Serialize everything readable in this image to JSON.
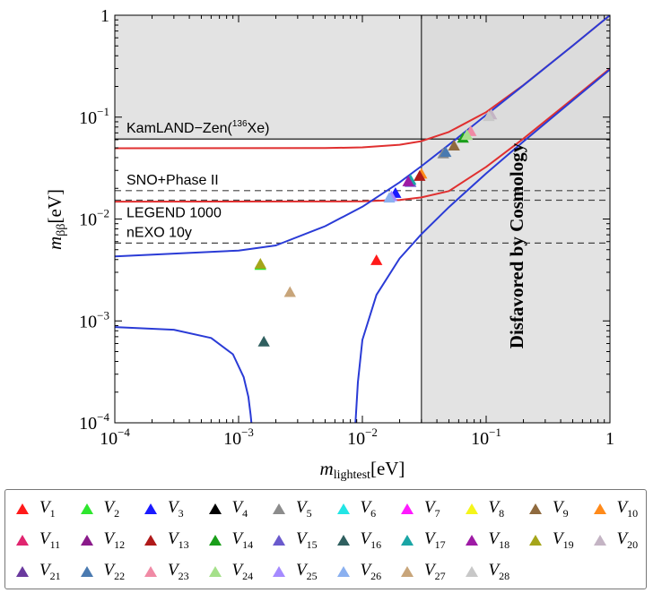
{
  "chart_data": {
    "type": "scatter",
    "xlabel": "m_lightest[eV]",
    "ylabel": "m_ββ[eV]",
    "xlabel_main": "m",
    "xlabel_sub": "lightest",
    "xlabel_unit": "[eV]",
    "ylabel_main": "m",
    "ylabel_sub": "ββ",
    "ylabel_unit": "[eV]",
    "x_scale": "log",
    "y_scale": "log",
    "xlim": [
      0.0001,
      1
    ],
    "ylim": [
      0.0001,
      1
    ],
    "x_ticks": [
      {
        "value": 0.0001,
        "base": "10",
        "exp": "−4"
      },
      {
        "value": 0.001,
        "base": "10",
        "exp": "−3"
      },
      {
        "value": 0.01,
        "base": "10",
        "exp": "−2"
      },
      {
        "value": 0.1,
        "base": "10",
        "exp": "−1"
      },
      {
        "value": 1,
        "base": "1",
        "exp": ""
      }
    ],
    "y_ticks": [
      {
        "value": 0.0001,
        "base": "10",
        "exp": "−4"
      },
      {
        "value": 0.001,
        "base": "10",
        "exp": "−3"
      },
      {
        "value": 0.01,
        "base": "10",
        "exp": "−2"
      },
      {
        "value": 0.1,
        "base": "10",
        "exp": "−1"
      },
      {
        "value": 1,
        "base": "1",
        "exp": ""
      }
    ],
    "excluded_regions": [
      {
        "name": "KamLAND-Zen excluded",
        "y_min": 0.061,
        "color": "#d9d9d9"
      },
      {
        "name": "Cosmology disfavored",
        "x_min": 0.03,
        "color": "#d9d9d9"
      }
    ],
    "limits": [
      {
        "label": "KamLAND−Zen(",
        "sup": "136",
        "label_tail": "Xe)",
        "y": 0.061,
        "style": "solid"
      },
      {
        "label": "SNO+Phase II",
        "y": 0.019,
        "style": "dashed"
      },
      {
        "label": "LEGEND 1000",
        "y": 0.0153,
        "style": "dashed"
      },
      {
        "label": "nEXO 10y",
        "y": 0.0058,
        "style": "dashed"
      }
    ],
    "cosmology_x": 0.03,
    "cosmology_label": "Disfavored by Cosmology",
    "bands": [
      {
        "name": "IO upper",
        "color": "#e03030",
        "points": [
          [
            0.0001,
            0.0495
          ],
          [
            0.005,
            0.0497
          ],
          [
            0.01,
            0.0505
          ],
          [
            0.02,
            0.0536
          ],
          [
            0.03,
            0.0581
          ],
          [
            0.05,
            0.0716
          ],
          [
            0.1,
            0.1118
          ],
          [
            0.2,
            0.206
          ],
          [
            0.5,
            0.502
          ],
          [
            1,
            1.0
          ]
        ]
      },
      {
        "name": "IO lower",
        "color": "#e03030",
        "points": [
          [
            0.0001,
            0.0148
          ],
          [
            0.01,
            0.0149
          ],
          [
            0.02,
            0.0154
          ],
          [
            0.03,
            0.0163
          ],
          [
            0.05,
            0.0188
          ],
          [
            0.1,
            0.0325
          ],
          [
            0.2,
            0.0614
          ],
          [
            0.5,
            0.151
          ],
          [
            1,
            0.3
          ]
        ]
      },
      {
        "name": "NO upper",
        "color": "#2a3bd6",
        "points": [
          [
            0.0001,
            0.0043
          ],
          [
            0.001,
            0.0049
          ],
          [
            0.002,
            0.0055
          ],
          [
            0.005,
            0.0085
          ],
          [
            0.01,
            0.0132
          ],
          [
            0.02,
            0.0229
          ],
          [
            0.03,
            0.033
          ],
          [
            0.05,
            0.0535
          ],
          [
            0.1,
            0.1048
          ],
          [
            0.2,
            0.205
          ],
          [
            0.5,
            0.502
          ],
          [
            1,
            1.0
          ]
        ]
      },
      {
        "name": "NO lower",
        "color": "#2a3bd6",
        "points": [
          [
            0.0001,
            0.00087
          ],
          [
            0.0003,
            0.00082
          ],
          [
            0.0006,
            0.00068
          ],
          [
            0.0009,
            0.00047
          ],
          [
            0.0011,
            0.00028
          ],
          [
            0.0012,
            0.00018
          ],
          [
            0.00125,
            0.00012
          ],
          [
            0.00127,
            0.0001
          ]
        ]
      },
      {
        "name": "NO lower right",
        "color": "#2a3bd6",
        "points": [
          [
            0.0088,
            0.0001
          ],
          [
            0.0092,
            0.00025
          ],
          [
            0.01,
            0.00065
          ],
          [
            0.013,
            0.0018
          ],
          [
            0.02,
            0.0041
          ],
          [
            0.03,
            0.0071
          ],
          [
            0.05,
            0.0131
          ],
          [
            0.1,
            0.028
          ],
          [
            0.2,
            0.0576
          ],
          [
            0.5,
            0.146
          ],
          [
            1,
            0.293
          ]
        ]
      }
    ],
    "series": [
      {
        "name": "𝒱1",
        "label": "V",
        "index": "1",
        "color": "#ff1a1a",
        "points": [
          [
            0.013,
            0.0039
          ]
        ]
      },
      {
        "name": "𝒱2",
        "label": "V",
        "index": "2",
        "color": "#2ee62e",
        "points": [
          [
            0.0015,
            0.0035
          ]
        ]
      },
      {
        "name": "𝒱3",
        "label": "V",
        "index": "3",
        "color": "#1a1aff",
        "points": [
          [
            0.0185,
            0.0178
          ]
        ]
      },
      {
        "name": "𝒱4",
        "label": "V",
        "index": "4",
        "color": "#000000",
        "points": []
      },
      {
        "name": "𝒱5",
        "label": "V",
        "index": "5",
        "color": "#8c8c8c",
        "points": [
          [
            0.045,
            0.0435
          ]
        ]
      },
      {
        "name": "𝒱6",
        "label": "V",
        "index": "6",
        "color": "#22e5e5",
        "points": []
      },
      {
        "name": "𝒱7",
        "label": "V",
        "index": "7",
        "color": "#ff1aff",
        "points": []
      },
      {
        "name": "𝒱8",
        "label": "V",
        "index": "8",
        "color": "#f5f51a",
        "points": []
      },
      {
        "name": "𝒱9",
        "label": "V",
        "index": "9",
        "color": "#8f6a3e",
        "points": [
          [
            0.055,
            0.052
          ]
        ]
      },
      {
        "name": "𝒱10",
        "label": "V",
        "index": "10",
        "color": "#ff8a1a",
        "points": [
          [
            0.03,
            0.0275
          ]
        ]
      },
      {
        "name": "𝒱11",
        "label": "V",
        "index": "11",
        "color": "#e0256f",
        "points": []
      },
      {
        "name": "𝒱12",
        "label": "V",
        "index": "12",
        "color": "#8a1a8a",
        "points": []
      },
      {
        "name": "𝒱13",
        "label": "V",
        "index": "13",
        "color": "#b01a1a",
        "points": [
          [
            0.029,
            0.0262
          ]
        ]
      },
      {
        "name": "𝒱14",
        "label": "V",
        "index": "14",
        "color": "#1a9e1a",
        "points": [
          [
            0.065,
            0.062
          ]
        ]
      },
      {
        "name": "𝒱15",
        "label": "V",
        "index": "15",
        "color": "#6a5acd",
        "points": [
          [
            0.0245,
            0.0228
          ]
        ]
      },
      {
        "name": "𝒱16",
        "label": "V",
        "index": "16",
        "color": "#2f5f5f",
        "points": [
          [
            0.0016,
            0.00062
          ]
        ]
      },
      {
        "name": "𝒱17",
        "label": "V",
        "index": "17",
        "color": "#1aa5a5",
        "points": [
          [
            0.0245,
            0.024
          ]
        ]
      },
      {
        "name": "𝒱18",
        "label": "V",
        "index": "18",
        "color": "#9e1aa5",
        "points": [
          [
            0.0235,
            0.0232
          ]
        ]
      },
      {
        "name": "𝒱19",
        "label": "V",
        "index": "19",
        "color": "#a5a51a",
        "points": [
          [
            0.0015,
            0.0036
          ]
        ]
      },
      {
        "name": "𝒱20",
        "label": "V",
        "index": "20",
        "color": "#c4b4c4",
        "points": [
          [
            0.11,
            0.105
          ]
        ]
      },
      {
        "name": "𝒱21",
        "label": "V",
        "index": "21",
        "color": "#6a3a9e",
        "points": []
      },
      {
        "name": "𝒱22",
        "label": "V",
        "index": "22",
        "color": "#4a7ab0",
        "points": [
          [
            0.047,
            0.045
          ]
        ]
      },
      {
        "name": "𝒱23",
        "label": "V",
        "index": "23",
        "color": "#f08aa5",
        "points": [
          [
            0.075,
            0.072
          ]
        ]
      },
      {
        "name": "𝒱24",
        "label": "V",
        "index": "24",
        "color": "#a5e08a",
        "points": [
          [
            0.07,
            0.066
          ]
        ]
      },
      {
        "name": "𝒱25",
        "label": "V",
        "index": "25",
        "color": "#a58aff",
        "points": [
          [
            0.0172,
            0.0165
          ]
        ]
      },
      {
        "name": "𝒱26",
        "label": "V",
        "index": "26",
        "color": "#8ab0f0",
        "points": [
          [
            0.0165,
            0.016
          ]
        ]
      },
      {
        "name": "𝒱27",
        "label": "V",
        "index": "27",
        "color": "#c8a57a",
        "points": [
          [
            0.0026,
            0.0019
          ]
        ]
      },
      {
        "name": "𝒱28",
        "label": "V",
        "index": "28",
        "color": "#c8c8c8",
        "points": [
          [
            0.105,
            0.101
          ]
        ]
      }
    ]
  }
}
